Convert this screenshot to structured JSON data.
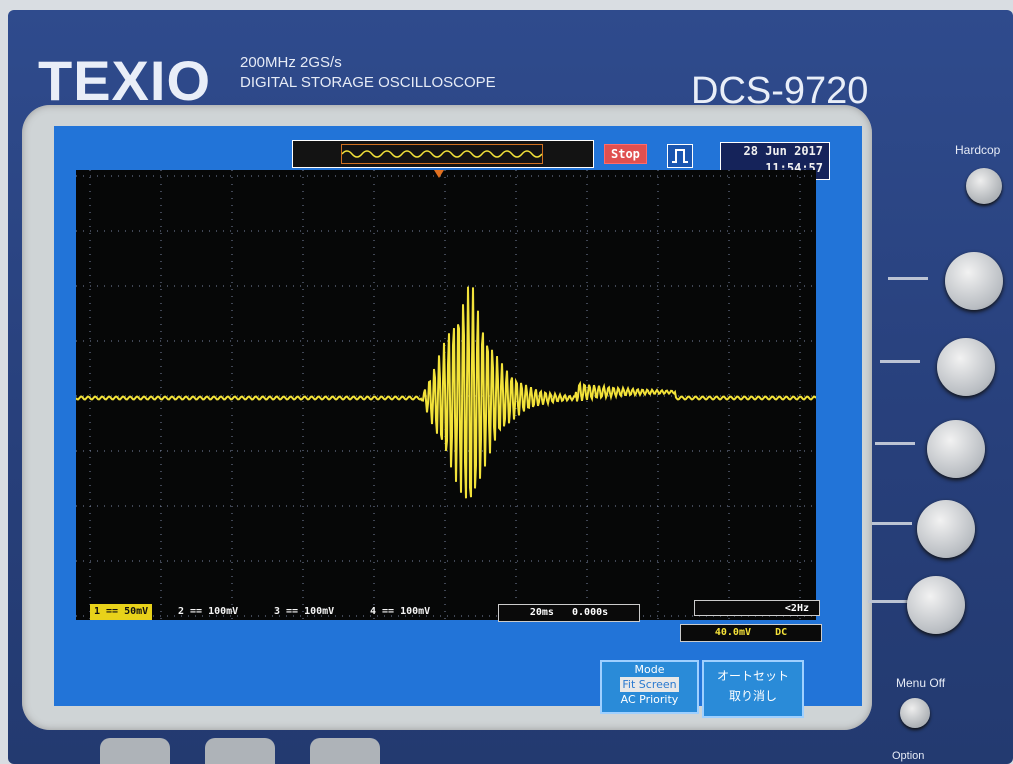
{
  "device": {
    "brand": "TEXIO",
    "spec_line1": "200MHz  2GS/s",
    "spec_line2": "DIGITAL STORAGE OSCILLOSCOPE",
    "model": "DCS-9720"
  },
  "screen": {
    "status": "Stop",
    "date": "28 Jun 2017",
    "time": "11:54:57",
    "channels": [
      {
        "label": "1 == 50mV"
      },
      {
        "label": "2 == 100mV"
      },
      {
        "label": "3 == 100mV"
      },
      {
        "label": "4 == 100mV"
      }
    ],
    "timebase": "20ms",
    "offset": "0.000s",
    "frequency": "<2Hz",
    "trigger_level": "40.0mV",
    "coupling": "DC",
    "menu": {
      "mode_label": "Mode",
      "fit_screen": "Fit Screen",
      "ac_priority": "AC Priority",
      "autoset_line1": "オートセット",
      "autoset_line2": "取り消し"
    }
  },
  "panel": {
    "hardcopy": "Hardcop",
    "menu_off": "Menu Off",
    "option": "Option"
  },
  "colors": {
    "trace": "#f2e23a",
    "screen_bg": "#2274d8",
    "bezel": "#2b4585"
  }
}
